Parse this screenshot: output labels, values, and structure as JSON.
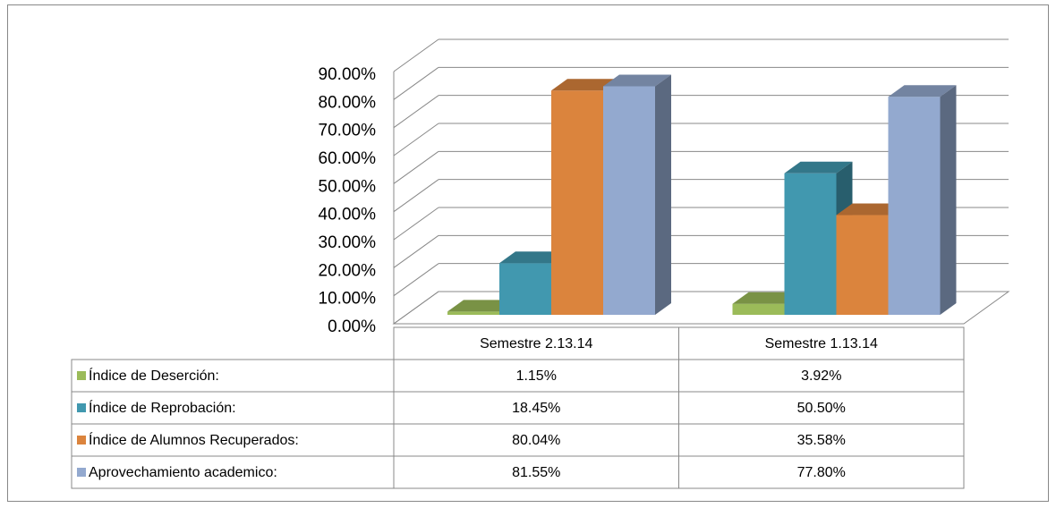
{
  "chart_data": {
    "type": "bar3d",
    "categories": [
      "Semestre 2.13.14",
      "Semestre 1.13.14"
    ],
    "series": [
      {
        "name": "Índice de Deserción:",
        "color": "#9bbb59",
        "values": [
          1.15,
          3.92
        ],
        "value_labels": [
          "1.15%",
          "3.92%"
        ]
      },
      {
        "name": "Índice de Reprobación:",
        "color": "#4198af",
        "values": [
          18.45,
          50.5
        ],
        "value_labels": [
          "18.45%",
          "50.50%"
        ]
      },
      {
        "name": "Índice de Alumnos Recuperados:",
        "color": "#db843d",
        "values": [
          80.04,
          35.58
        ],
        "value_labels": [
          "80.04%",
          "35.58%"
        ]
      },
      {
        "name": "Aprovechamiento academico:",
        "color": "#93a9cf",
        "values": [
          81.55,
          77.8
        ],
        "value_labels": [
          "81.55%",
          "77.80%"
        ]
      }
    ],
    "ylim": [
      0,
      90
    ],
    "yticks": [
      {
        "value": 0,
        "label": "0.00%"
      },
      {
        "value": 10,
        "label": "10.00%"
      },
      {
        "value": 20,
        "label": "20.00%"
      },
      {
        "value": 30,
        "label": "30.00%"
      },
      {
        "value": 40,
        "label": "40.00%"
      },
      {
        "value": 50,
        "label": "50.00%"
      },
      {
        "value": 60,
        "label": "60.00%"
      },
      {
        "value": 70,
        "label": "70.00%"
      },
      {
        "value": 80,
        "label": "80.00%"
      },
      {
        "value": 90,
        "label": "90.00%"
      }
    ],
    "grid": true
  }
}
